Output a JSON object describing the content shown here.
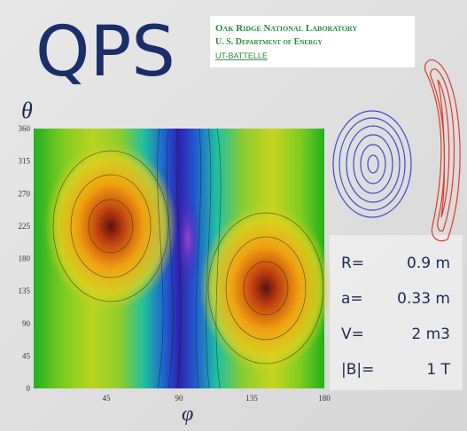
{
  "title": "QPS",
  "logo": {
    "line1": "Oak Ridge National Laboratory",
    "line2": "U. S. Department of Energy",
    "line3": "UT-Battelle"
  },
  "plot": {
    "y_label": "θ",
    "x_label": "φ",
    "yticks": [
      "0",
      "45",
      "90",
      "135",
      "180",
      "225",
      "270",
      "315",
      "360"
    ],
    "xticks": [
      "45",
      "90",
      "135",
      "180"
    ]
  },
  "params": [
    {
      "name": "R=",
      "value": "0.9 m"
    },
    {
      "name": "a=",
      "value": "0.33 m"
    },
    {
      "name": "V=",
      "value": "2 m3"
    },
    {
      "name": "|B|=",
      "value": "1 T"
    }
  ]
}
